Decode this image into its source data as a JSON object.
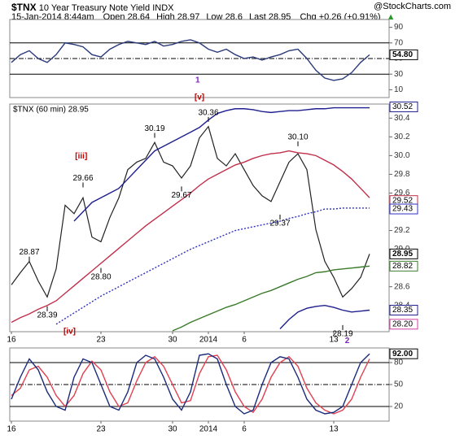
{
  "header": {
    "symbol": "$TNX",
    "name": "10 Year Treasury Note Yield",
    "exchange": "INDX",
    "credit": "@StockCharts.com",
    "timestamp": "15-Jan-2014 8:44am",
    "quote": [
      {
        "label": "Open",
        "value": 28.64
      },
      {
        "label": "High",
        "value": 28.97
      },
      {
        "label": "Low",
        "value": 28.6
      },
      {
        "label": "Last",
        "value": 28.95
      }
    ],
    "change_label": "Chg",
    "change": "+0.26 (+0.91%)"
  },
  "chart_data": [
    {
      "type": "line",
      "ylim": [
        0,
        100
      ],
      "yticks": [
        10,
        30,
        50,
        70,
        90
      ],
      "levels": [
        30,
        70
      ],
      "midline": 50,
      "series": [
        {
          "color": "#2a3a7a",
          "values": [
            45,
            55,
            60,
            50,
            45,
            55,
            70,
            68,
            65,
            55,
            52,
            62,
            68,
            72,
            70,
            68,
            72,
            66,
            68,
            72,
            74,
            70,
            62,
            58,
            62,
            55,
            50,
            52,
            48,
            52,
            55,
            60,
            62,
            50,
            35,
            25,
            22,
            24,
            32,
            45,
            54.8
          ]
        }
      ],
      "tags": [
        {
          "value": 54.8,
          "label": "54.80",
          "color": "#000000"
        }
      ],
      "waves": [
        {
          "x": 20.8,
          "y": 22,
          "label": "1",
          "color": "#8020c0"
        }
      ]
    },
    {
      "type": "line",
      "title": "$TNX (60 min) 28.95",
      "ylim": [
        28.12,
        30.55
      ],
      "yticks": [
        {
          "value": 28.2,
          "label": "28.2"
        },
        28.4,
        28.6,
        28.8,
        {
          "value": 29.0,
          "label": "29.0"
        },
        29.2,
        29.4,
        29.6,
        29.8,
        {
          "value": 30.0,
          "label": "30.0"
        },
        30.2,
        30.4
      ],
      "categories": [
        "16",
        null,
        null,
        null,
        null,
        null,
        null,
        null,
        null,
        null,
        "23",
        null,
        null,
        null,
        null,
        null,
        null,
        null,
        "30",
        null,
        null,
        null,
        "2014",
        null,
        null,
        null,
        "6",
        null,
        null,
        null,
        null,
        null,
        null,
        null,
        null,
        null,
        "13",
        null,
        null,
        null,
        null
      ],
      "series": [
        {
          "color": "#222222",
          "values": [
            28.62,
            28.75,
            28.87,
            28.66,
            28.49,
            28.79,
            29.47,
            29.38,
            29.55,
            29.13,
            29.08,
            29.34,
            29.55,
            29.85,
            29.93,
            29.97,
            30.14,
            29.93,
            29.89,
            29.76,
            29.89,
            30.19,
            30.31,
            29.97,
            29.89,
            30.02,
            29.85,
            29.68,
            29.57,
            29.51,
            29.72,
            29.93,
            30.02,
            29.85,
            29.21,
            28.87,
            28.7,
            28.49,
            28.58,
            28.7,
            28.95
          ]
        },
        {
          "color": "#1f1f8f",
          "values": [
            null,
            null,
            null,
            null,
            null,
            null,
            null,
            29.3,
            29.4,
            29.5,
            29.55,
            29.6,
            29.65,
            29.75,
            29.85,
            29.95,
            30.05,
            30.1,
            30.15,
            30.2,
            30.25,
            30.3,
            30.38,
            30.45,
            30.48,
            30.5,
            30.5,
            30.49,
            30.47,
            30.46,
            30.47,
            30.48,
            30.48,
            30.49,
            30.5,
            30.5,
            30.51,
            30.51,
            30.51,
            30.51,
            30.51
          ]
        },
        {
          "color": "#1f1f8f",
          "values": [
            null,
            null,
            null,
            null,
            null,
            null,
            null,
            null,
            null,
            null,
            null,
            null,
            null,
            null,
            null,
            null,
            null,
            null,
            null,
            null,
            null,
            null,
            null,
            null,
            null,
            null,
            null,
            null,
            null,
            null,
            28.15,
            28.25,
            28.33,
            28.37,
            28.39,
            28.4,
            28.38,
            28.35,
            28.33,
            28.34,
            28.35
          ]
        },
        {
          "color": "#c0304a",
          "values": [
            28.22,
            28.27,
            28.31,
            28.36,
            28.4,
            28.45,
            28.53,
            28.61,
            28.69,
            28.77,
            28.85,
            28.93,
            29.01,
            29.09,
            29.17,
            29.25,
            29.32,
            29.39,
            29.46,
            29.53,
            29.6,
            29.68,
            29.75,
            29.8,
            29.85,
            29.9,
            29.93,
            29.97,
            30.0,
            30.02,
            30.03,
            30.05,
            30.03,
            30.02,
            30.0,
            29.95,
            29.9,
            29.83,
            29.75,
            29.65,
            29.55
          ]
        },
        {
          "color": "#3030c0",
          "dash": true,
          "values": [
            null,
            null,
            null,
            null,
            null,
            28.2,
            28.26,
            28.32,
            28.38,
            28.44,
            28.5,
            28.55,
            28.6,
            28.65,
            28.7,
            28.75,
            28.8,
            28.85,
            28.9,
            28.95,
            29.0,
            29.04,
            29.08,
            29.12,
            29.16,
            29.2,
            29.22,
            29.24,
            29.26,
            29.28,
            29.3,
            29.33,
            29.35,
            29.38,
            29.4,
            29.43,
            29.43,
            29.44,
            29.44,
            29.44,
            29.44
          ]
        },
        {
          "color": "#3a7a2a",
          "values": [
            null,
            null,
            null,
            null,
            null,
            null,
            null,
            null,
            null,
            null,
            null,
            null,
            null,
            null,
            null,
            null,
            null,
            null,
            28.13,
            28.17,
            28.22,
            28.26,
            28.3,
            28.34,
            28.38,
            28.41,
            28.45,
            28.49,
            28.53,
            28.56,
            28.6,
            28.64,
            28.68,
            28.71,
            28.75,
            28.76,
            28.78,
            28.79,
            28.8,
            28.81,
            28.82
          ]
        }
      ],
      "tags": [
        {
          "value": 30.52,
          "color": "#1f1f8f"
        },
        {
          "value": 29.52,
          "color": "#c0304a"
        },
        {
          "value": 29.43,
          "color": "#3030c0"
        },
        {
          "value": 28.95,
          "color": "#000000"
        },
        {
          "value": 28.82,
          "color": "#3a7a2a"
        },
        {
          "value": 28.35,
          "color": "#1f1f8f"
        },
        {
          "value": 28.2,
          "label": "28.20",
          "color": "#d040a0"
        }
      ],
      "pivots": [
        {
          "x": 2,
          "value": 28.87
        },
        {
          "x": 4,
          "value": 28.39
        },
        {
          "x": 8,
          "value": 29.66
        },
        {
          "x": 10,
          "value": 28.8,
          "label": "28.80"
        },
        {
          "x": 16,
          "value": 30.19
        },
        {
          "x": 19,
          "value": 29.67
        },
        {
          "x": 22,
          "value": 30.36
        },
        {
          "x": 32,
          "value": 30.1,
          "label": "30.10"
        },
        {
          "x": 30,
          "value": 29.37
        },
        {
          "x": 37,
          "value": 28.19
        }
      ],
      "waves": [
        {
          "x": 7.8,
          "y": 29.99,
          "label": "[iii]",
          "color": "#c00000"
        },
        {
          "x": 21,
          "y": 30.62,
          "label": "[v]",
          "color": "#c00000"
        },
        {
          "x": 6.5,
          "y": 28.12,
          "label": "[iv]",
          "color": "#c00000"
        },
        {
          "x": 37.5,
          "y": 28.02,
          "label": "2",
          "color": "#8020c0"
        }
      ]
    },
    {
      "type": "line",
      "ylim": [
        0,
        100
      ],
      "yticks": [
        20,
        50,
        80
      ],
      "levels": [
        20,
        80
      ],
      "midline": 50,
      "categories": [
        "16",
        null,
        null,
        null,
        null,
        null,
        null,
        null,
        null,
        null,
        "23",
        null,
        null,
        null,
        null,
        null,
        null,
        null,
        "30",
        null,
        null,
        null,
        "2014",
        null,
        null,
        null,
        "6",
        null,
        null,
        null,
        null,
        null,
        null,
        null,
        null,
        null,
        "13",
        null,
        null,
        null,
        null
      ],
      "series": [
        {
          "color": "#e04050",
          "values": [
            35,
            45,
            70,
            75,
            60,
            35,
            20,
            35,
            65,
            82,
            70,
            40,
            20,
            25,
            55,
            80,
            88,
            75,
            50,
            25,
            28,
            65,
            88,
            90,
            70,
            40,
            20,
            12,
            30,
            60,
            80,
            88,
            75,
            45,
            25,
            15,
            10,
            15,
            30,
            60,
            85
          ]
        },
        {
          "color": "#1a2a7a",
          "values": [
            30,
            60,
            85,
            70,
            40,
            20,
            15,
            60,
            85,
            80,
            50,
            20,
            15,
            40,
            80,
            90,
            85,
            60,
            30,
            15,
            40,
            90,
            92,
            85,
            50,
            20,
            10,
            15,
            50,
            80,
            88,
            85,
            60,
            30,
            15,
            10,
            12,
            20,
            50,
            80,
            92
          ]
        }
      ],
      "tags": [
        {
          "value": 92,
          "label": "92.00",
          "color": "#000000"
        }
      ]
    }
  ]
}
